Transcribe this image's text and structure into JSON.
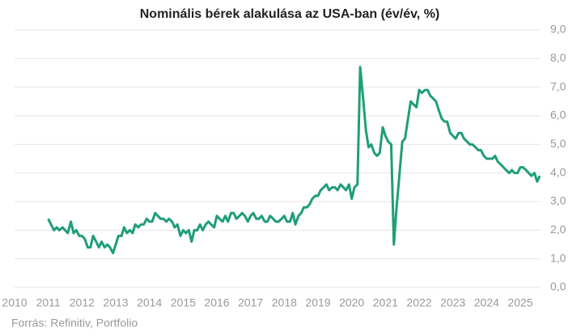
{
  "chart_data": {
    "type": "line",
    "title": "Nominális bérek alakulása az USA-ban (év/év, %)",
    "source": "Forrás: Refinitiv, Portfolio",
    "xlim": [
      2010,
      2025.6
    ],
    "xticks": [
      2010,
      2011,
      2012,
      2013,
      2014,
      2015,
      2016,
      2017,
      2018,
      2019,
      2020,
      2021,
      2022,
      2023,
      2024,
      2025
    ],
    "ylim": [
      0,
      9
    ],
    "yticks": [
      {
        "value": 0,
        "label": "0,0"
      },
      {
        "value": 1,
        "label": "1,0"
      },
      {
        "value": 2,
        "label": "2,0"
      },
      {
        "value": 3,
        "label": "3,0"
      },
      {
        "value": 4,
        "label": "4,0"
      },
      {
        "value": 5,
        "label": "5,0"
      },
      {
        "value": 6,
        "label": "6,0"
      },
      {
        "value": 7,
        "label": "7,0"
      },
      {
        "value": 8,
        "label": "8,0"
      },
      {
        "value": 9,
        "label": "9,0"
      }
    ],
    "grid": true,
    "x": [
      2011.0,
      2011.08,
      2011.17,
      2011.25,
      2011.33,
      2011.42,
      2011.5,
      2011.58,
      2011.67,
      2011.75,
      2011.83,
      2011.92,
      2012.0,
      2012.08,
      2012.17,
      2012.25,
      2012.33,
      2012.42,
      2012.5,
      2012.58,
      2012.67,
      2012.75,
      2012.83,
      2012.92,
      2013.0,
      2013.08,
      2013.17,
      2013.25,
      2013.33,
      2013.42,
      2013.5,
      2013.58,
      2013.67,
      2013.75,
      2013.83,
      2013.92,
      2014.0,
      2014.08,
      2014.17,
      2014.25,
      2014.33,
      2014.42,
      2014.5,
      2014.58,
      2014.67,
      2014.75,
      2014.83,
      2014.92,
      2015.0,
      2015.08,
      2015.17,
      2015.25,
      2015.33,
      2015.42,
      2015.5,
      2015.58,
      2015.67,
      2015.75,
      2015.83,
      2015.92,
      2016.0,
      2016.08,
      2016.17,
      2016.25,
      2016.33,
      2016.42,
      2016.5,
      2016.58,
      2016.67,
      2016.75,
      2016.83,
      2016.92,
      2017.0,
      2017.08,
      2017.17,
      2017.25,
      2017.33,
      2017.42,
      2017.5,
      2017.58,
      2017.67,
      2017.75,
      2017.83,
      2017.92,
      2018.0,
      2018.08,
      2018.17,
      2018.25,
      2018.33,
      2018.42,
      2018.5,
      2018.58,
      2018.67,
      2018.75,
      2018.83,
      2018.92,
      2019.0,
      2019.08,
      2019.17,
      2019.25,
      2019.33,
      2019.42,
      2019.5,
      2019.58,
      2019.67,
      2019.75,
      2019.83,
      2019.92,
      2020.0,
      2020.08,
      2020.17,
      2020.25,
      2020.33,
      2020.42,
      2020.5,
      2020.58,
      2020.67,
      2020.75,
      2020.83,
      2020.92,
      2021.0,
      2021.08,
      2021.17,
      2021.25,
      2021.33,
      2021.42,
      2021.5,
      2021.58,
      2021.67,
      2021.75,
      2021.83,
      2021.92,
      2022.0,
      2022.08,
      2022.17,
      2022.25,
      2022.33,
      2022.42,
      2022.5,
      2022.58,
      2022.67,
      2022.75,
      2022.83,
      2022.92,
      2023.0,
      2023.08,
      2023.17,
      2023.25,
      2023.33,
      2023.42,
      2023.5,
      2023.58,
      2023.67,
      2023.75,
      2023.83,
      2023.92,
      2024.0,
      2024.08,
      2024.17,
      2024.25,
      2024.33,
      2024.42,
      2024.5,
      2024.58,
      2024.67,
      2024.75,
      2024.83,
      2024.92,
      2025.0,
      2025.08,
      2025.17,
      2025.25,
      2025.33,
      2025.42,
      2025.5,
      2025.58
    ],
    "series": [
      {
        "color": "#1f9e78",
        "values": [
          2.4,
          2.2,
          2.0,
          2.1,
          2.0,
          2.1,
          2.0,
          1.9,
          2.3,
          1.9,
          2.0,
          1.8,
          1.8,
          1.7,
          1.4,
          1.4,
          1.8,
          1.6,
          1.4,
          1.6,
          1.4,
          1.5,
          1.4,
          1.2,
          1.5,
          1.8,
          1.8,
          2.1,
          1.9,
          2.0,
          1.9,
          2.2,
          2.1,
          2.2,
          2.2,
          2.4,
          2.3,
          2.3,
          2.6,
          2.5,
          2.4,
          2.4,
          2.3,
          2.4,
          2.3,
          2.1,
          2.2,
          1.8,
          2.0,
          1.9,
          2.0,
          1.6,
          2.0,
          2.0,
          2.2,
          2.0,
          2.2,
          2.3,
          2.2,
          2.1,
          2.5,
          2.4,
          2.3,
          2.5,
          2.3,
          2.6,
          2.6,
          2.4,
          2.5,
          2.6,
          2.5,
          2.3,
          2.5,
          2.6,
          2.4,
          2.4,
          2.5,
          2.3,
          2.3,
          2.5,
          2.4,
          2.3,
          2.3,
          2.4,
          2.5,
          2.3,
          2.3,
          2.6,
          2.2,
          2.5,
          2.6,
          2.8,
          2.8,
          2.9,
          3.1,
          3.2,
          3.2,
          3.4,
          3.5,
          3.6,
          3.4,
          3.5,
          3.5,
          3.4,
          3.6,
          3.5,
          3.4,
          3.6,
          3.1,
          3.5,
          3.6,
          7.7,
          6.7,
          5.5,
          4.9,
          5.0,
          4.7,
          4.6,
          4.7,
          5.6,
          5.3,
          5.1,
          5.0,
          1.5,
          2.8,
          4.0,
          5.1,
          5.2,
          5.9,
          6.5,
          6.4,
          6.3,
          6.9,
          6.8,
          6.9,
          6.9,
          6.7,
          6.6,
          6.5,
          6.2,
          5.9,
          5.8,
          5.8,
          5.4,
          5.3,
          5.2,
          5.4,
          5.4,
          5.2,
          5.1,
          5.0,
          5.0,
          4.9,
          4.8,
          4.8,
          4.6,
          4.5,
          4.5,
          4.5,
          4.6,
          4.4,
          4.3,
          4.2,
          4.1,
          4.0,
          4.1,
          4.0,
          4.0,
          4.2,
          4.2,
          4.1,
          4.0,
          3.9,
          4.0,
          3.7,
          3.9
        ]
      }
    ]
  }
}
